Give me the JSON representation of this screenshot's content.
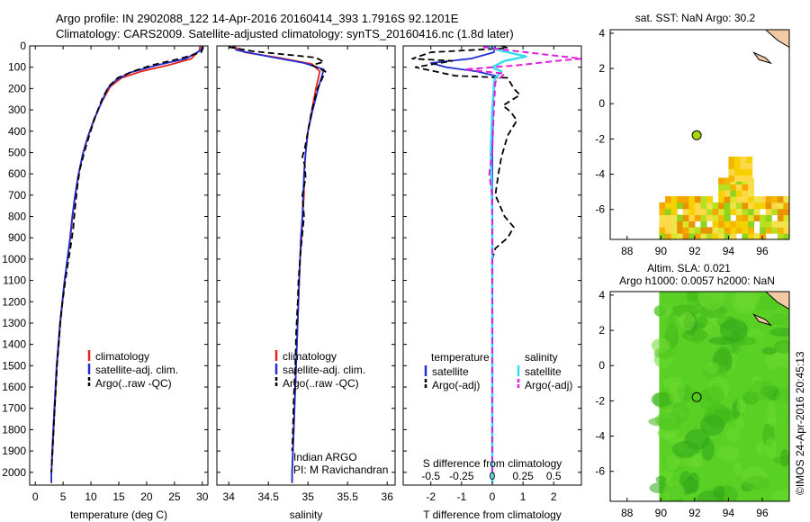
{
  "header": {
    "line1": "Argo profile: IN 2902088_122 14-Apr-2016 20160414_393 1.7916S 92.1201E",
    "line2": "Climatology: CARS2009. Satellite-adjusted climatology: synTS_20160416.nc (1.8d later)"
  },
  "colors": {
    "climatology": "#e8221b",
    "satellite": "#1f2fd6",
    "argo": "#000000",
    "sal_sat": "#36dcf0",
    "sal_argo": "#e020d8",
    "land": "#f2c9a5",
    "sst_main": "#f2b800",
    "sla_main": "#5ad025"
  },
  "chart_data": [
    {
      "type": "line",
      "id": "temperature",
      "xlabel": "temperature (deg C)",
      "ylabel": "",
      "xlim": [
        -1,
        31
      ],
      "ylim": [
        2060,
        0
      ],
      "xticks": [
        0,
        5,
        10,
        15,
        20,
        25,
        30
      ],
      "yticks": [
        0,
        100,
        200,
        300,
        400,
        500,
        600,
        700,
        800,
        900,
        1000,
        1100,
        1200,
        1300,
        1400,
        1500,
        1600,
        1700,
        1800,
        1900,
        2000
      ],
      "legend": [
        "climatology",
        "satellite-adj. clim.",
        "Argo(..raw -QC)"
      ],
      "series": [
        {
          "name": "climatology",
          "style": "solid",
          "color": "#e8221b",
          "points": [
            [
              29.6,
              0
            ],
            [
              29.5,
              20
            ],
            [
              28,
              60
            ],
            [
              24,
              90
            ],
            [
              19,
              120
            ],
            [
              15.5,
              150
            ],
            [
              13.5,
              190
            ],
            [
              12,
              260
            ],
            [
              10.6,
              340
            ],
            [
              9.5,
              420
            ],
            [
              8.6,
              500
            ],
            [
              7.8,
              600
            ],
            [
              7.2,
              700
            ],
            [
              6.7,
              800
            ],
            [
              6.3,
              900
            ],
            [
              5.8,
              1000
            ],
            [
              5.3,
              1100
            ],
            [
              4.9,
              1200
            ],
            [
              4.5,
              1300
            ],
            [
              4.2,
              1400
            ],
            [
              3.9,
              1500
            ],
            [
              3.7,
              1600
            ],
            [
              3.5,
              1700
            ],
            [
              3.3,
              1800
            ],
            [
              3.1,
              1900
            ],
            [
              2.9,
              2000
            ],
            [
              2.9,
              2050
            ]
          ]
        },
        {
          "name": "satellite",
          "style": "solid",
          "color": "#1f2fd6",
          "points": [
            [
              30,
              0
            ],
            [
              29.8,
              20
            ],
            [
              27,
              60
            ],
            [
              22,
              90
            ],
            [
              17,
              125
            ],
            [
              14.5,
              160
            ],
            [
              13,
              200
            ],
            [
              11.8,
              270
            ],
            [
              10.5,
              350
            ],
            [
              9.4,
              430
            ],
            [
              8.5,
              510
            ],
            [
              7.7,
              610
            ],
            [
              7.1,
              710
            ],
            [
              6.6,
              810
            ],
            [
              6.2,
              910
            ],
            [
              5.7,
              1010
            ],
            [
              5.2,
              1110
            ],
            [
              4.8,
              1210
            ],
            [
              4.4,
              1310
            ],
            [
              4.1,
              1410
            ],
            [
              3.8,
              1510
            ],
            [
              3.6,
              1610
            ],
            [
              3.4,
              1710
            ],
            [
              3.2,
              1810
            ],
            [
              3.0,
              1910
            ],
            [
              2.9,
              2010
            ],
            [
              2.9,
              2050
            ]
          ]
        },
        {
          "name": "argo",
          "style": "dashed",
          "color": "#000000",
          "points": [
            [
              30.2,
              5
            ],
            [
              29.8,
              30
            ],
            [
              26,
              60
            ],
            [
              21,
              90
            ],
            [
              17.5,
              120
            ],
            [
              14.8,
              150
            ],
            [
              13.2,
              190
            ],
            [
              12,
              250
            ],
            [
              10.8,
              330
            ],
            [
              9.7,
              420
            ],
            [
              8.8,
              500
            ],
            [
              8,
              580
            ],
            [
              7.6,
              650
            ],
            [
              7.3,
              720
            ],
            [
              7,
              800
            ],
            [
              6.8,
              860
            ],
            [
              6.3,
              950
            ],
            [
              5.8,
              1030
            ],
            [
              5.3,
              1120
            ],
            [
              4.9,
              1200
            ],
            [
              4.5,
              1300
            ],
            [
              4.2,
              1400
            ],
            [
              3.9,
              1500
            ],
            [
              3.7,
              1600
            ],
            [
              3.5,
              1700
            ],
            [
              3.3,
              1800
            ],
            [
              3.1,
              1900
            ],
            [
              2.9,
              2000
            ]
          ]
        }
      ]
    },
    {
      "type": "line",
      "id": "salinity",
      "xlabel": "salinity",
      "xlim": [
        33.85,
        36.1
      ],
      "ylim": [
        2060,
        0
      ],
      "xticks": [
        34,
        34.5,
        35,
        35.5,
        36
      ],
      "legend": [
        "climatology",
        "satellite-adj. clim.",
        "Argo(..raw -QC)"
      ],
      "annotation": [
        "Indian ARGO",
        "PI: M Ravichandran"
      ],
      "series": [
        {
          "name": "climatology",
          "style": "solid",
          "color": "#e8221b",
          "points": [
            [
              34.05,
              0
            ],
            [
              34.2,
              30
            ],
            [
              34.7,
              60
            ],
            [
              35.05,
              85
            ],
            [
              35.15,
              120
            ],
            [
              35.1,
              200
            ],
            [
              35.05,
              300
            ],
            [
              35.0,
              400
            ],
            [
              34.97,
              500
            ],
            [
              34.95,
              600
            ],
            [
              34.95,
              700
            ],
            [
              34.93,
              800
            ],
            [
              34.92,
              900
            ],
            [
              34.9,
              1000
            ],
            [
              34.88,
              1200
            ],
            [
              34.86,
              1400
            ],
            [
              34.84,
              1600
            ],
            [
              34.82,
              1800
            ],
            [
              34.8,
              2000
            ],
            [
              34.8,
              2050
            ]
          ]
        },
        {
          "name": "satellite",
          "style": "solid",
          "color": "#1f2fd6",
          "points": [
            [
              34.05,
              0
            ],
            [
              34.1,
              20
            ],
            [
              34.5,
              50
            ],
            [
              34.95,
              80
            ],
            [
              35.2,
              110
            ],
            [
              35.13,
              200
            ],
            [
              35.06,
              300
            ],
            [
              35.0,
              400
            ],
            [
              34.97,
              500
            ],
            [
              34.95,
              600
            ],
            [
              34.94,
              700
            ],
            [
              34.93,
              800
            ],
            [
              34.91,
              900
            ],
            [
              34.9,
              1000
            ],
            [
              34.88,
              1200
            ],
            [
              34.86,
              1400
            ],
            [
              34.84,
              1600
            ],
            [
              34.82,
              1800
            ],
            [
              34.8,
              2000
            ],
            [
              34.8,
              2050
            ]
          ]
        },
        {
          "name": "argo",
          "style": "dashed",
          "color": "#000000",
          "points": [
            [
              34.0,
              5
            ],
            [
              34.3,
              25
            ],
            [
              35.1,
              55
            ],
            [
              35.2,
              75
            ],
            [
              35.05,
              90
            ],
            [
              35.22,
              120
            ],
            [
              35.12,
              200
            ],
            [
              35.05,
              300
            ],
            [
              35.0,
              400
            ],
            [
              34.96,
              480
            ],
            [
              34.93,
              520
            ],
            [
              34.96,
              560
            ],
            [
              34.97,
              620
            ],
            [
              34.93,
              700
            ],
            [
              34.95,
              800
            ],
            [
              34.93,
              880
            ],
            [
              34.91,
              950
            ],
            [
              34.9,
              1000
            ],
            [
              34.88,
              1100
            ],
            [
              34.87,
              1200
            ],
            [
              34.85,
              1350
            ],
            [
              34.84,
              1500
            ],
            [
              34.82,
              1650
            ],
            [
              34.81,
              1800
            ],
            [
              34.8,
              1900
            ]
          ]
        }
      ]
    },
    {
      "type": "line",
      "id": "difference",
      "xlabel": "T difference from climatology",
      "xlabel_top": "S difference from climatology",
      "xlim": [
        -2.9,
        2.9
      ],
      "ylim": [
        2060,
        0
      ],
      "xticks": [
        -2,
        -1,
        0,
        1,
        2
      ],
      "top_ticks": [
        -0.5,
        -0.25,
        0,
        0.25,
        0.5
      ],
      "legend_titles": [
        "temperature",
        "salinity"
      ],
      "legend": [
        "satellite",
        "Argo(-adj)",
        "satellite",
        "Argo(-adj)"
      ],
      "series": [
        {
          "name": "T satellite",
          "style": "solid",
          "color": "#1f2fd6",
          "points": [
            [
              0.1,
              0
            ],
            [
              0.05,
              30
            ],
            [
              -0.7,
              60
            ],
            [
              -2.0,
              80
            ],
            [
              -1.5,
              100
            ],
            [
              -0.5,
              120
            ],
            [
              0.1,
              140
            ],
            [
              0.05,
              180
            ],
            [
              0.02,
              300
            ],
            [
              0,
              500
            ],
            [
              0,
              1000
            ],
            [
              0,
              1500
            ],
            [
              0,
              2050
            ]
          ]
        },
        {
          "name": "T argo",
          "style": "dashed",
          "color": "#000000",
          "points": [
            [
              0.3,
              0
            ],
            [
              0.5,
              10
            ],
            [
              -2.0,
              30
            ],
            [
              -2.6,
              60
            ],
            [
              -1.3,
              70
            ],
            [
              -2.5,
              100
            ],
            [
              -1.2,
              140
            ],
            [
              0.5,
              150
            ],
            [
              0.7,
              200
            ],
            [
              0.9,
              230
            ],
            [
              0.35,
              280
            ],
            [
              0.6,
              310
            ],
            [
              0.8,
              350
            ],
            [
              0.5,
              420
            ],
            [
              0.3,
              520
            ],
            [
              0.2,
              600
            ],
            [
              0.1,
              700
            ],
            [
              0.4,
              800
            ],
            [
              0.7,
              850
            ],
            [
              0.5,
              900
            ],
            [
              0.1,
              950
            ],
            [
              0,
              1000
            ],
            [
              0,
              1200
            ],
            [
              0,
              1500
            ],
            [
              0,
              2000
            ]
          ]
        },
        {
          "name": "S satellite",
          "style": "solid",
          "color": "#36dcf0",
          "lw": 2.5,
          "points": [
            [
              -0.2,
              0
            ],
            [
              0.2,
              20
            ],
            [
              1.1,
              50
            ],
            [
              0.4,
              70
            ],
            [
              0,
              100
            ],
            [
              0.3,
              120
            ],
            [
              0.1,
              150
            ],
            [
              0.05,
              200
            ],
            [
              0,
              300
            ],
            [
              -0.05,
              500
            ],
            [
              0,
              800
            ],
            [
              0,
              1100
            ],
            [
              0,
              1400
            ],
            [
              0,
              1700
            ],
            [
              0,
              2050
            ]
          ]
        },
        {
          "name": "S argo",
          "style": "dashed",
          "color": "#e020d8",
          "lw": 2,
          "points": [
            [
              -0.3,
              5
            ],
            [
              0.5,
              20
            ],
            [
              2.9,
              60
            ],
            [
              2.1,
              70
            ],
            [
              0.9,
              90
            ],
            [
              -0.9,
              110
            ],
            [
              0.4,
              130
            ],
            [
              0.1,
              170
            ],
            [
              0.05,
              300
            ],
            [
              0,
              500
            ],
            [
              -0.1,
              600
            ],
            [
              0,
              700
            ],
            [
              0,
              1000
            ],
            [
              0,
              1500
            ],
            [
              0,
              2000
            ]
          ]
        }
      ]
    },
    {
      "type": "heatmap",
      "id": "sst_map",
      "title": "sat. SST: NaN Argo: 30.2",
      "xlim": [
        87,
        97.6
      ],
      "ylim": [
        -7.7,
        4.2
      ],
      "xticks": [
        88,
        90,
        92,
        94,
        96
      ],
      "yticks": [
        -6,
        -4,
        -2,
        0,
        2,
        4
      ],
      "argo_position": [
        92.12,
        -1.79
      ],
      "argo_marker_color": "#a7d600",
      "palette": [
        "#f2b800",
        "#f7d000",
        "#ffd84a",
        "#f5a500",
        "#e89400",
        "#d9e62b",
        "#b6df1f",
        "#8ed41c",
        "#f0e44d"
      ]
    },
    {
      "type": "heatmap",
      "id": "sla_map",
      "title": "Altim. SLA: 0.021",
      "subtitle": "Argo h1000: 0.0057 h2000: NaN",
      "xlim": [
        87,
        97.6
      ],
      "ylim": [
        -7.7,
        4.2
      ],
      "xticks": [
        88,
        90,
        92,
        94,
        96
      ],
      "yticks": [
        -6,
        -4,
        -2,
        0,
        2,
        4
      ],
      "argo_position": [
        92.12,
        -1.79
      ],
      "palette": [
        "#5ad025",
        "#4ec51f",
        "#68d82e",
        "#3fb51a",
        "#6ed930",
        "#2fa619"
      ]
    }
  ],
  "footer": "©IMOS 24-Apr-2016 20:45:13"
}
